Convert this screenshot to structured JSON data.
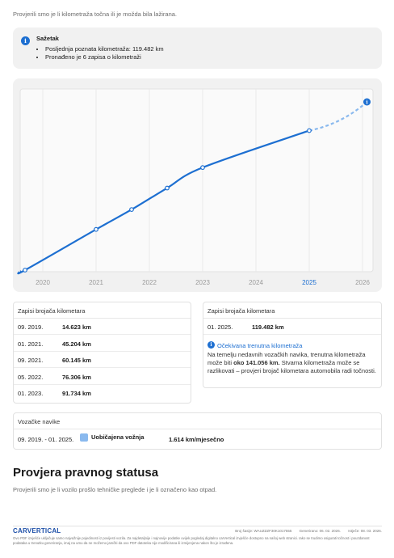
{
  "intro": "Provjerili smo je li kilometraža točna ili je možda bila lažirana.",
  "summary": {
    "title": "Sažetak",
    "bullets": [
      "Posljednja poznata kilometraža: 119.482 km",
      "Pronađeno je 6 zapisa o kilometraži"
    ]
  },
  "chart_data": {
    "type": "line",
    "x_ticks": [
      "2020",
      "2021",
      "2022",
      "2023",
      "2024",
      "2025",
      "2026"
    ],
    "highlighted_tick": "2025",
    "series": [
      {
        "x": [
          "09. 2019.",
          "01. 2021.",
          "09. 2021.",
          "05. 2022.",
          "01. 2023.",
          "01. 2025."
        ],
        "values": [
          14623,
          45204,
          60145,
          76306,
          91734,
          119482
        ]
      }
    ],
    "projection": {
      "x": "02. 2026.",
      "value": 141056
    },
    "grid": true
  },
  "records_left": {
    "title": "Zapisi brojača kilometara",
    "rows": [
      {
        "date": "09. 2019.",
        "km": "14.623 km"
      },
      {
        "date": "01. 2021.",
        "km": "45.204 km"
      },
      {
        "date": "09. 2021.",
        "km": "60.145 km"
      },
      {
        "date": "05. 2022.",
        "km": "76.306 km"
      },
      {
        "date": "01. 2023.",
        "km": "91.734 km"
      }
    ]
  },
  "records_right": {
    "title": "Zapisi brojača kilometara",
    "row": {
      "date": "01. 2025.",
      "km": "119.482 km"
    },
    "expected_title": "Očekivana trenutna kilometraža",
    "expected_pre": "Na temelju nedavnih vozačkih navika, trenutna kilometraža može biti ",
    "expected_value": "oko 141.056 km.",
    "expected_post": " Stvarna kilometraža može se razlikovati – provjeri brojač kilometara automobila radi točnosti."
  },
  "habits": {
    "title": "Vozačke navike",
    "period": "09. 2019. - 01. 2025.",
    "label": "Uobičajena vožnja",
    "value": "1.614 km/mjesečno",
    "color": "#8ab9ee"
  },
  "legal": {
    "title": "Provjera pravnog statusa",
    "subtitle": "Provjerili smo je li vozilo prošlo tehničke preglede i je li označeno kao otpad."
  },
  "footer": {
    "brand": "CARVERTICAL",
    "report_no": "Broj šasije: WAUZZZF30K1017555",
    "generated": "Generirano: 06. 02. 2026.",
    "expires": "Istječe: 08. 03. 2026.",
    "disclaimer": "Ovo PDF izvješće uključuje samo najvažnije pojedinosti iz povijesti vozila. Za najdetaljnije i najnovije podatke uvijek pogledaj digitalno carVertical izvješće dostupno na našoj web stranici. Iako se trudimo osigurati točnost i pouzdanost podataka u trenutku generiranja, imaj na umu da ne možemo jamčiti da ovo PDF datoteka nije modificirana ili izmijenjena nakon što je izrađena."
  },
  "colors": {
    "accent": "#1d6fd1",
    "projection": "#8ab9ee"
  }
}
